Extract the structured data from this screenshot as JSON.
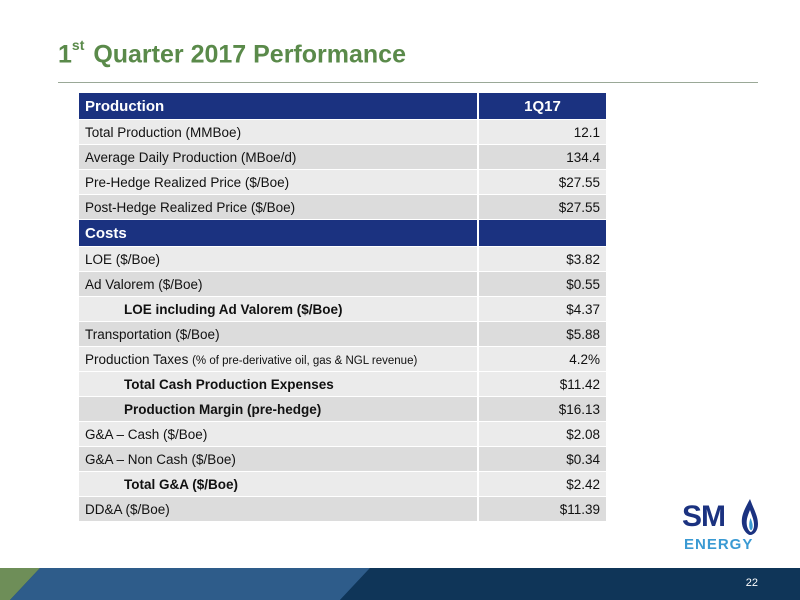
{
  "slide": {
    "title_sup": "st",
    "title_number": "1",
    "title_rest": "Quarter 2017 Performance",
    "page_number": "22"
  },
  "table": {
    "rows": [
      {
        "label": "Production",
        "value": "1Q17"
      },
      {
        "label": "Total Production (MMBoe)",
        "value": "12.1"
      },
      {
        "label": "Average Daily Production (MBoe/d)",
        "value": "134.4"
      },
      {
        "label": "Pre-Hedge Realized Price ($/Boe)",
        "value": "$27.55"
      },
      {
        "label": "Post-Hedge Realized Price ($/Boe)",
        "value": "$27.55"
      },
      {
        "label": "Costs",
        "value": ""
      },
      {
        "label": "LOE ($/Boe)",
        "value": "$3.82"
      },
      {
        "label": "Ad Valorem ($/Boe)",
        "value": "$0.55"
      },
      {
        "label": "LOE including Ad Valorem ($/Boe)",
        "value": "$4.37"
      },
      {
        "label": "Transportation ($/Boe)",
        "value": "$5.88"
      },
      {
        "label": "Production Taxes",
        "label_note": "(% of pre-derivative oil, gas & NGL revenue)",
        "value": "4.2%"
      },
      {
        "label": "Total Cash Production Expenses",
        "value": "$11.42"
      },
      {
        "label": "Production Margin (pre-hedge)",
        "value": "$16.13"
      },
      {
        "label": "G&A – Cash ($/Boe)",
        "value": "$2.08"
      },
      {
        "label": "G&A – Non Cash ($/Boe)",
        "value": "$0.34"
      },
      {
        "label": "Total G&A ($/Boe)",
        "value": "$2.42"
      },
      {
        "label": "DD&A ($/Boe)",
        "value": "$11.39"
      }
    ]
  },
  "logo": {
    "wordmark_top": "SM",
    "wordmark_bottom": "ENERGY",
    "brand_blue": "#1b3280",
    "brand_light_blue": "#3a9ad3"
  },
  "colors": {
    "title_green": "#5a8a4a",
    "header_navy": "#1b3280",
    "row_light": "#ebebeb",
    "row_dark": "#dcdcdc"
  }
}
